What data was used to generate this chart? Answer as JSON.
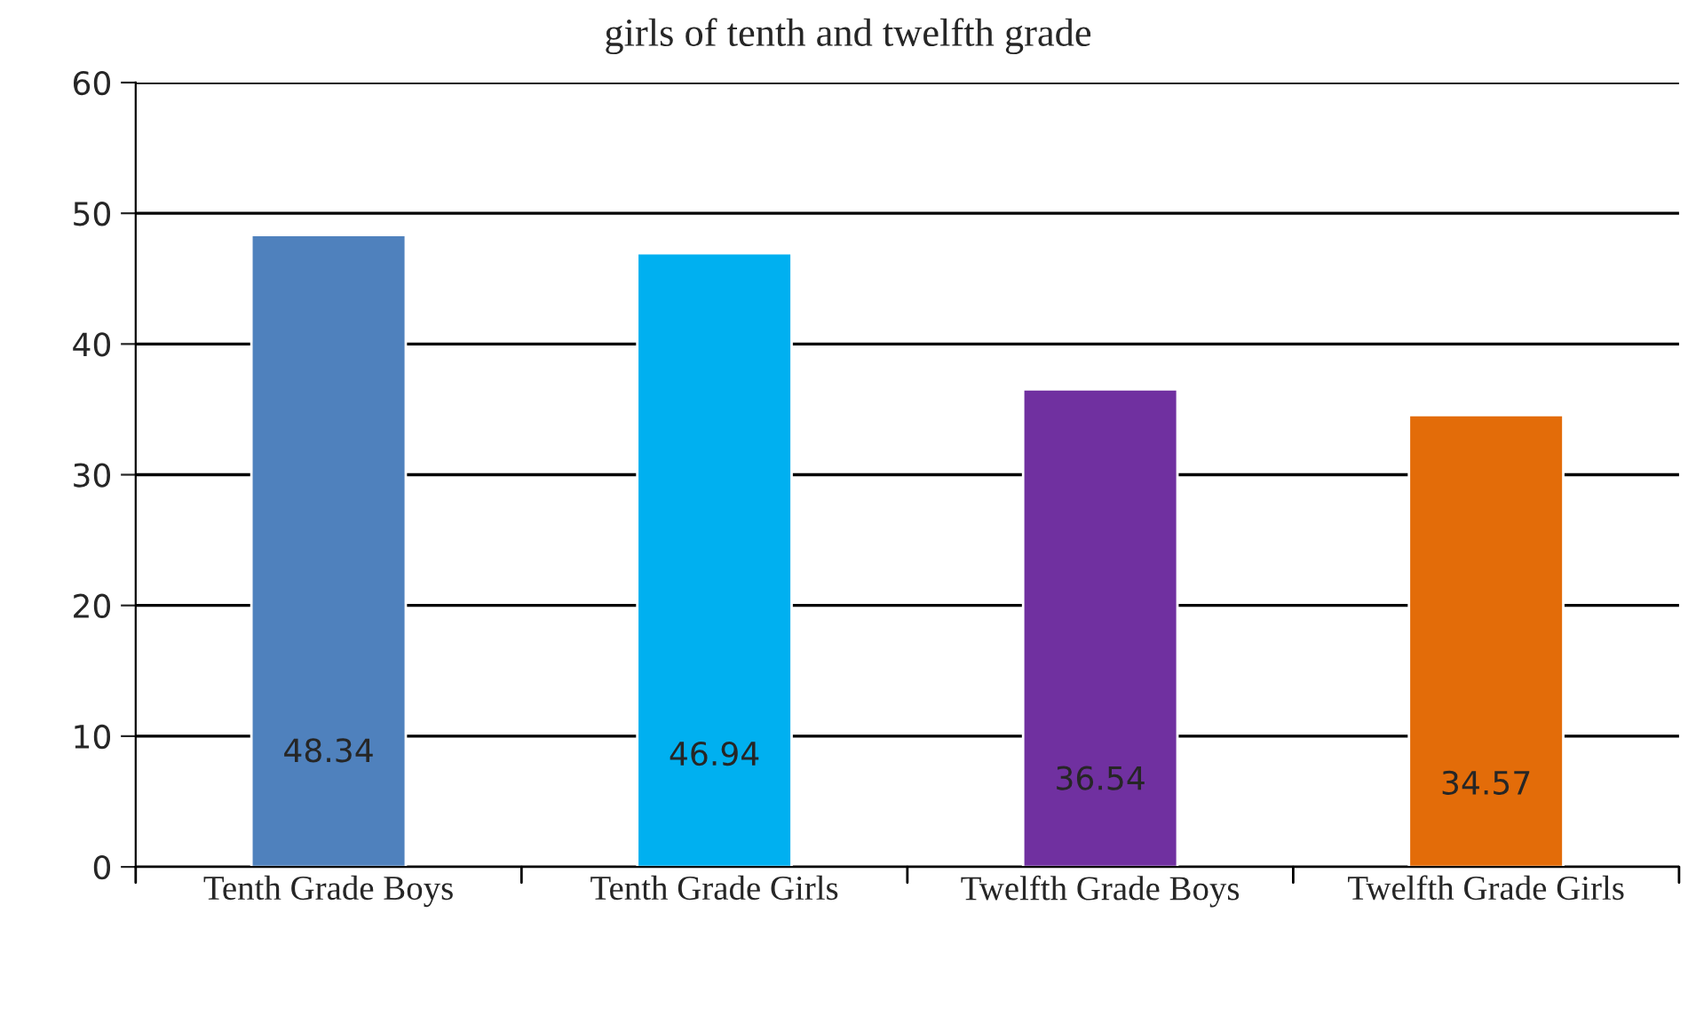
{
  "chart_data": {
    "type": "bar",
    "title": "girls of tenth and twelfth grade",
    "categories": [
      "Tenth Grade Boys",
      "Tenth Grade Girls",
      "Twelfth Grade Boys",
      "Twelfth Grade Girls"
    ],
    "values": [
      48.34,
      46.94,
      36.54,
      34.57
    ],
    "colors": [
      "#4f81bd",
      "#00b0f0",
      "#7030a0",
      "#e36c09"
    ],
    "ylim": [
      0,
      60
    ],
    "yticks": [
      0,
      10,
      20,
      30,
      40,
      50,
      60
    ],
    "grid": "y",
    "data_labels": true
  }
}
